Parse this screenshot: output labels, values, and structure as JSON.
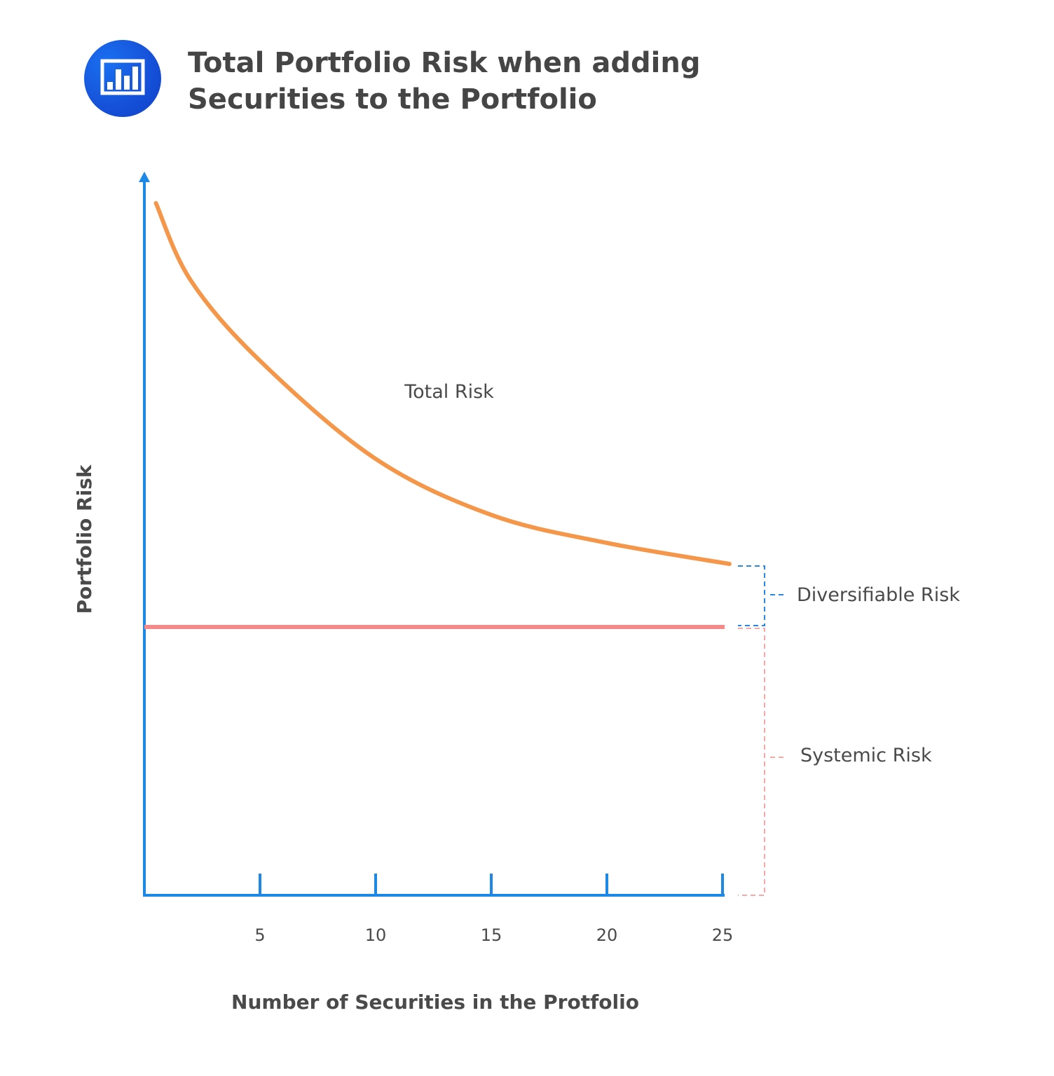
{
  "chart_data": {
    "type": "line",
    "title": "Total Portfolio Risk when adding Securities to the Portfolio",
    "xlabel": "Number of Securities in the Protfolio",
    "ylabel": "Portfolio Risk",
    "xlim": [
      0,
      25
    ],
    "x_ticks": [
      5,
      10,
      15,
      20,
      25
    ],
    "x_tick_labels": [
      "5",
      "10",
      "15",
      "20",
      "25"
    ],
    "grid": false,
    "series": [
      {
        "name": "Total Risk",
        "color": "#f5974a",
        "x": [
          0.5,
          2,
          5,
          10,
          15,
          20,
          25.3
        ],
        "y": [
          98.8,
          87.8,
          76.3,
          62.3,
          54.3,
          50.3,
          47.3
        ]
      },
      {
        "name": "Systemic Risk",
        "color": "#f58a8a",
        "x": [
          0,
          25
        ],
        "y": [
          38.3,
          38.3
        ]
      }
    ],
    "annotations": [
      {
        "text": "Diversifiable Risk",
        "color": "#2b86e0"
      },
      {
        "text": "Systemic Risk",
        "color": "#f58a8a"
      }
    ],
    "axis_color": "#1d88e5",
    "icon": "bar-chart-icon"
  }
}
